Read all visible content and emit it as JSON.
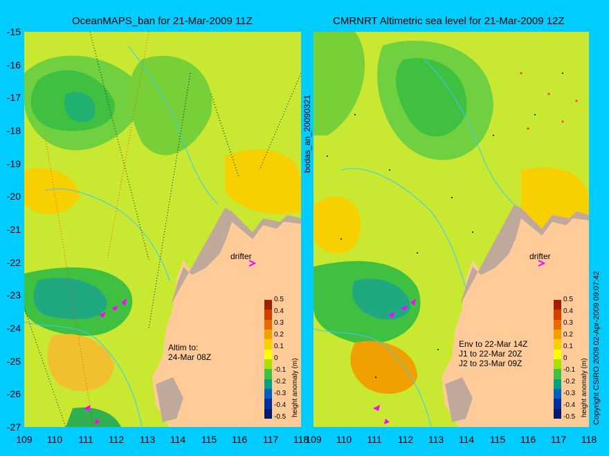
{
  "panels": [
    {
      "title": "OceanMAPS_ban for 21-Mar-2009 11Z",
      "drifter_label": "drifter",
      "note_lines": [
        "Altim to:",
        "24-Mar 08Z"
      ],
      "colorbar_label": "height anomaly (m)"
    },
    {
      "title": "CMRNRT Altimetric sea level  for 21-Mar-2009 12Z",
      "drifter_label": "drifter",
      "note_lines": [
        "Env to 22-Mar 14Z",
        "J1 to 22-Mar 20Z",
        "J2 to 23-Mar 09Z"
      ],
      "colorbar_label": "height anomaly (m)"
    }
  ],
  "side_label": "bodas_an_20090321",
  "copyright": "Copyright CSIRO 2009   02-Apr-2009 09:07:42",
  "axes": {
    "y_ticks": [
      "-15",
      "-16",
      "-17",
      "-18",
      "-19",
      "-20",
      "-21",
      "-22",
      "-23",
      "-24",
      "-25",
      "-26",
      "-27"
    ],
    "x_ticks": [
      "109",
      "110",
      "111",
      "112",
      "113",
      "114",
      "115",
      "116",
      "117",
      "118"
    ]
  },
  "colorbar": {
    "ticks": [
      "0.5",
      "0.4",
      "0.3",
      "0.2",
      "0.1",
      "0",
      "-0.1",
      "-0.2",
      "-0.3",
      "-0.4",
      "-0.5"
    ],
    "colors": [
      "#a02000",
      "#d04000",
      "#e86a00",
      "#f0a000",
      "#f8d000",
      "#ffff00",
      "#a8e000",
      "#40c040",
      "#00a080",
      "#0060c0",
      "#0030a0",
      "#001870"
    ]
  },
  "colors": {
    "background": "#00ccff",
    "land": "#ffcc99",
    "coast_rock": "#bfa99b",
    "contour": "#33ccff",
    "drifter_arrow": "#ff00ff"
  },
  "map_data": {
    "lon_range": [
      109,
      118
    ],
    "lat_range": [
      -27,
      -15
    ],
    "drifter": {
      "lon": 116.7,
      "lat": -22.0
    }
  }
}
